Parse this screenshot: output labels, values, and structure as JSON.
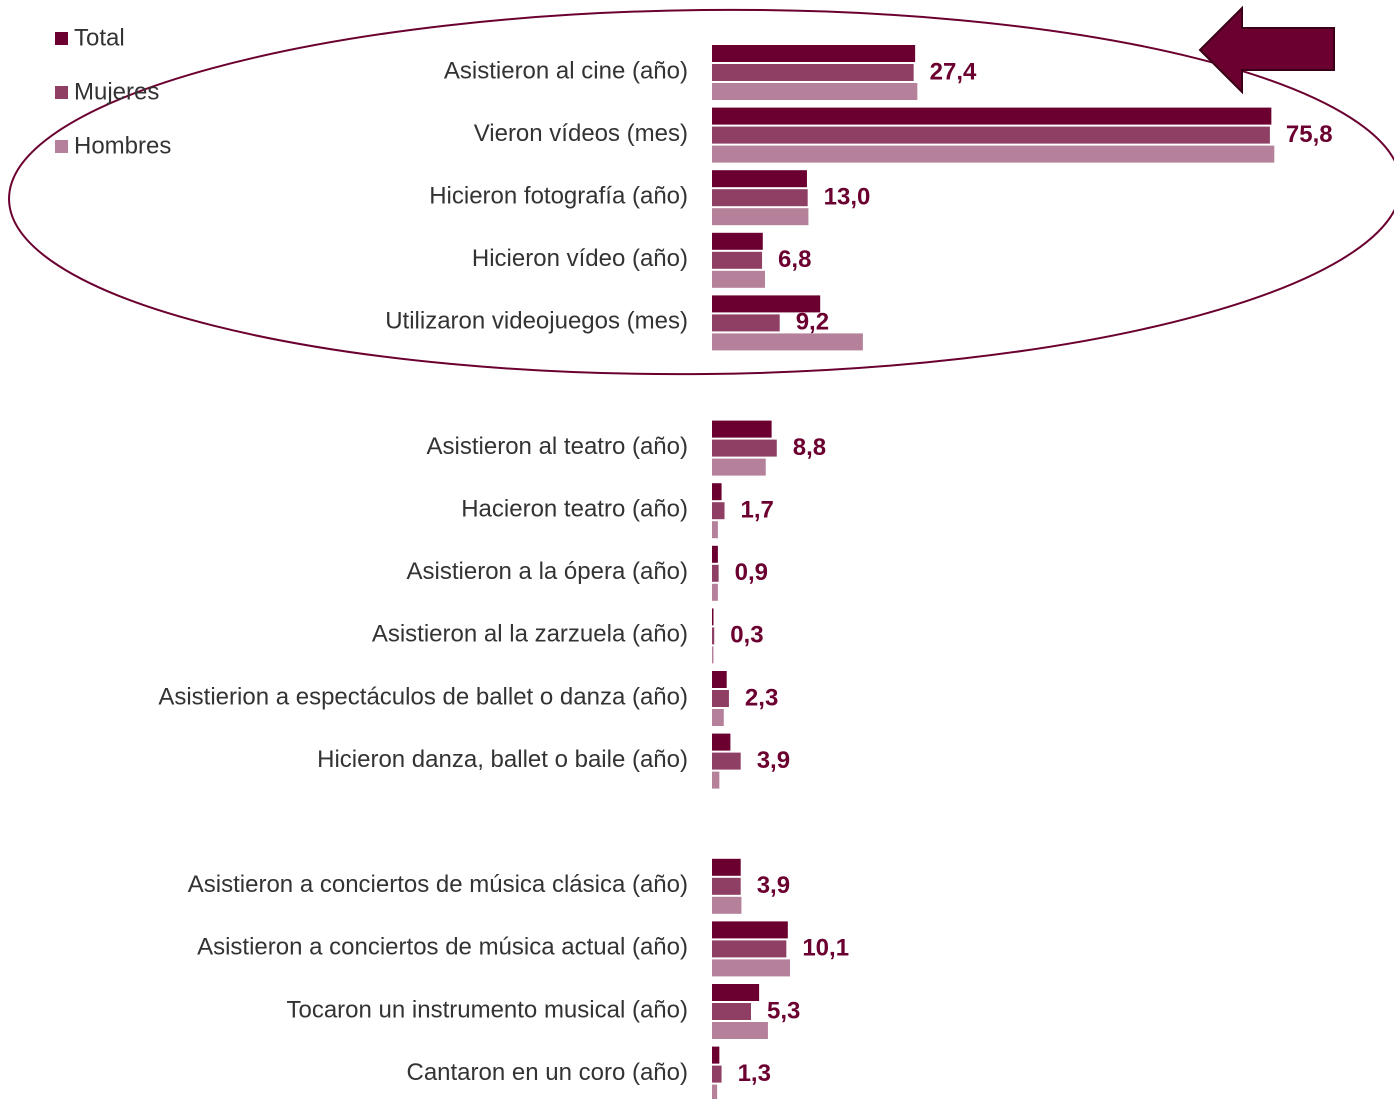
{
  "chart_data": {
    "type": "hbar",
    "categories": [
      "Asistieron al cine (año)",
      "Vieron vídeos (mes)",
      "Hicieron fotografía (año)",
      "Hicieron vídeo (año)",
      "Utilizaron videojuegos (mes)",
      "Asistieron al teatro (año)",
      "Hacieron teatro (año)",
      "Asistieron a la ópera (año)",
      "Asistieron al la zarzuela (año)",
      "Asistierion a espectáculos de ballet o danza (año)",
      "Hicieron danza, ballet o baile (año)",
      "Asistieron a conciertos de música clásica (año)",
      "Asistieron a conciertos de música actual (año)",
      "Tocaron un instrumento musical (año)",
      "Cantaron en un coro (año)"
    ],
    "series": [
      {
        "name": "Total",
        "color": "#6b0030",
        "values": [
          27.6,
          76.0,
          12.9,
          6.9,
          14.7,
          8.1,
          1.3,
          0.8,
          0.2,
          2.0,
          2.5,
          3.9,
          10.3,
          6.4,
          1.0
        ]
      },
      {
        "name": "Mujeres",
        "color": "#8e3f63",
        "values": [
          27.4,
          75.8,
          13.0,
          6.8,
          9.2,
          8.8,
          1.7,
          0.9,
          0.3,
          2.3,
          3.9,
          3.9,
          10.1,
          5.3,
          1.3
        ],
        "value_labels": [
          "27,4",
          "75,8",
          "13,0",
          "6,8",
          "9,2",
          "8,8",
          "1,7",
          "0,9",
          "0,3",
          "2,3",
          "3,9",
          "3,9",
          "10,1",
          "5,3",
          "1,3"
        ]
      },
      {
        "name": "Hombres",
        "color": "#b5809a",
        "values": [
          27.9,
          76.4,
          13.1,
          7.2,
          20.5,
          7.3,
          0.8,
          0.8,
          0.2,
          1.6,
          1.0,
          4.0,
          10.6,
          7.6,
          0.7
        ]
      }
    ],
    "legend": "top-left"
  }
}
